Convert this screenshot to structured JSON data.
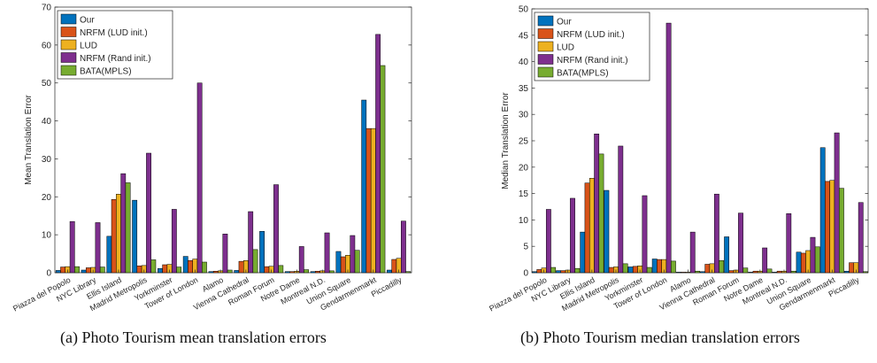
{
  "captions": {
    "a": "(a) Photo Tourism mean translation errors",
    "b": "(b) Photo Tourism median translation errors"
  },
  "colors": {
    "Our": "#0072BD",
    "NRFM (LUD init.)": "#D95319",
    "LUD": "#EDB120",
    "NRFM (Rand init.)": "#7E2F8E",
    "BATA(MPLS)": "#77AC30"
  },
  "chart_data": [
    {
      "type": "bar",
      "title": "",
      "xlabel": "",
      "ylabel": "Mean Translation Error",
      "ylim": [
        0,
        70
      ],
      "yticks": [
        0,
        10,
        20,
        30,
        40,
        50,
        60,
        70
      ],
      "grid": false,
      "legend_position": "top-left",
      "categories": [
        "Piazza del Popolo",
        "NYC Library",
        "Ellis Island",
        "Madrid Metropolis",
        "Yorkminster",
        "Tower of London",
        "Alamo",
        "Vienna Cathedral",
        "Roman Forum",
        "Notre Dame",
        "Montreal N.D.",
        "Union Square",
        "Gendarmenmarkt",
        "Piccadilly"
      ],
      "series": [
        {
          "name": "Our",
          "values": [
            0.6,
            0.7,
            9.6,
            19.1,
            1.1,
            4.3,
            0.3,
            0.6,
            10.9,
            0.3,
            0.3,
            5.6,
            45.5,
            0.7
          ]
        },
        {
          "name": "NRFM (LUD init.)",
          "values": [
            1.5,
            1.3,
            19.3,
            1.8,
            2.1,
            3.2,
            0.4,
            3.0,
            1.6,
            0.3,
            0.4,
            4.2,
            38.0,
            3.5
          ]
        },
        {
          "name": "LUD",
          "values": [
            1.6,
            1.4,
            20.7,
            1.9,
            2.2,
            3.6,
            0.5,
            3.2,
            1.7,
            0.4,
            0.5,
            4.6,
            38.0,
            3.8
          ]
        },
        {
          "name": "NRFM (Rand init.)",
          "values": [
            13.5,
            13.2,
            26.1,
            31.5,
            16.7,
            50.0,
            10.2,
            16.1,
            23.2,
            6.9,
            10.5,
            9.8,
            62.8,
            13.6
          ]
        },
        {
          "name": "BATA(MPLS)",
          "values": [
            1.6,
            1.5,
            23.7,
            3.4,
            1.5,
            2.8,
            0.7,
            6.1,
            1.9,
            0.8,
            0.5,
            5.9,
            54.6,
            0.3
          ]
        }
      ]
    },
    {
      "type": "bar",
      "title": "",
      "xlabel": "",
      "ylabel": "Median Translation Error",
      "ylim": [
        0,
        50
      ],
      "yticks": [
        0,
        5,
        10,
        15,
        20,
        25,
        30,
        35,
        40,
        45,
        50
      ],
      "grid": false,
      "legend_position": "top-left",
      "categories": [
        "Piazza del Popolo",
        "NYC Library",
        "Ellis Island",
        "Madrid Metropolis",
        "Yorkminster",
        "Tower of London",
        "Alamo",
        "Vienna Cathedral",
        "Roman Forum",
        "Notre Dame",
        "Montreal N.D.",
        "Union Square",
        "Gendarmenmarkt",
        "Piccadilly"
      ],
      "series": [
        {
          "name": "Our",
          "values": [
            0.2,
            0.4,
            7.7,
            15.6,
            1.1,
            2.6,
            0.1,
            0.2,
            6.8,
            0.1,
            0.1,
            3.9,
            23.7,
            0.3
          ]
        },
        {
          "name": "NRFM (LUD init.)",
          "values": [
            0.6,
            0.4,
            17.0,
            1.0,
            1.2,
            2.5,
            0.1,
            1.6,
            0.4,
            0.3,
            0.3,
            3.7,
            17.3,
            1.9
          ]
        },
        {
          "name": "LUD",
          "values": [
            0.9,
            0.5,
            17.9,
            1.1,
            1.3,
            2.5,
            0.1,
            1.7,
            0.5,
            0.3,
            0.3,
            4.2,
            17.5,
            1.9
          ]
        },
        {
          "name": "NRFM (Rand init.)",
          "values": [
            12.0,
            14.1,
            26.3,
            24.0,
            14.6,
            47.3,
            7.7,
            14.9,
            11.3,
            4.7,
            11.2,
            6.7,
            26.5,
            13.3
          ]
        },
        {
          "name": "BATA(MPLS)",
          "values": [
            1.0,
            0.8,
            22.5,
            1.7,
            1.0,
            2.2,
            0.3,
            2.3,
            0.9,
            0.7,
            0.3,
            4.9,
            16.0,
            0.2
          ]
        }
      ]
    }
  ]
}
